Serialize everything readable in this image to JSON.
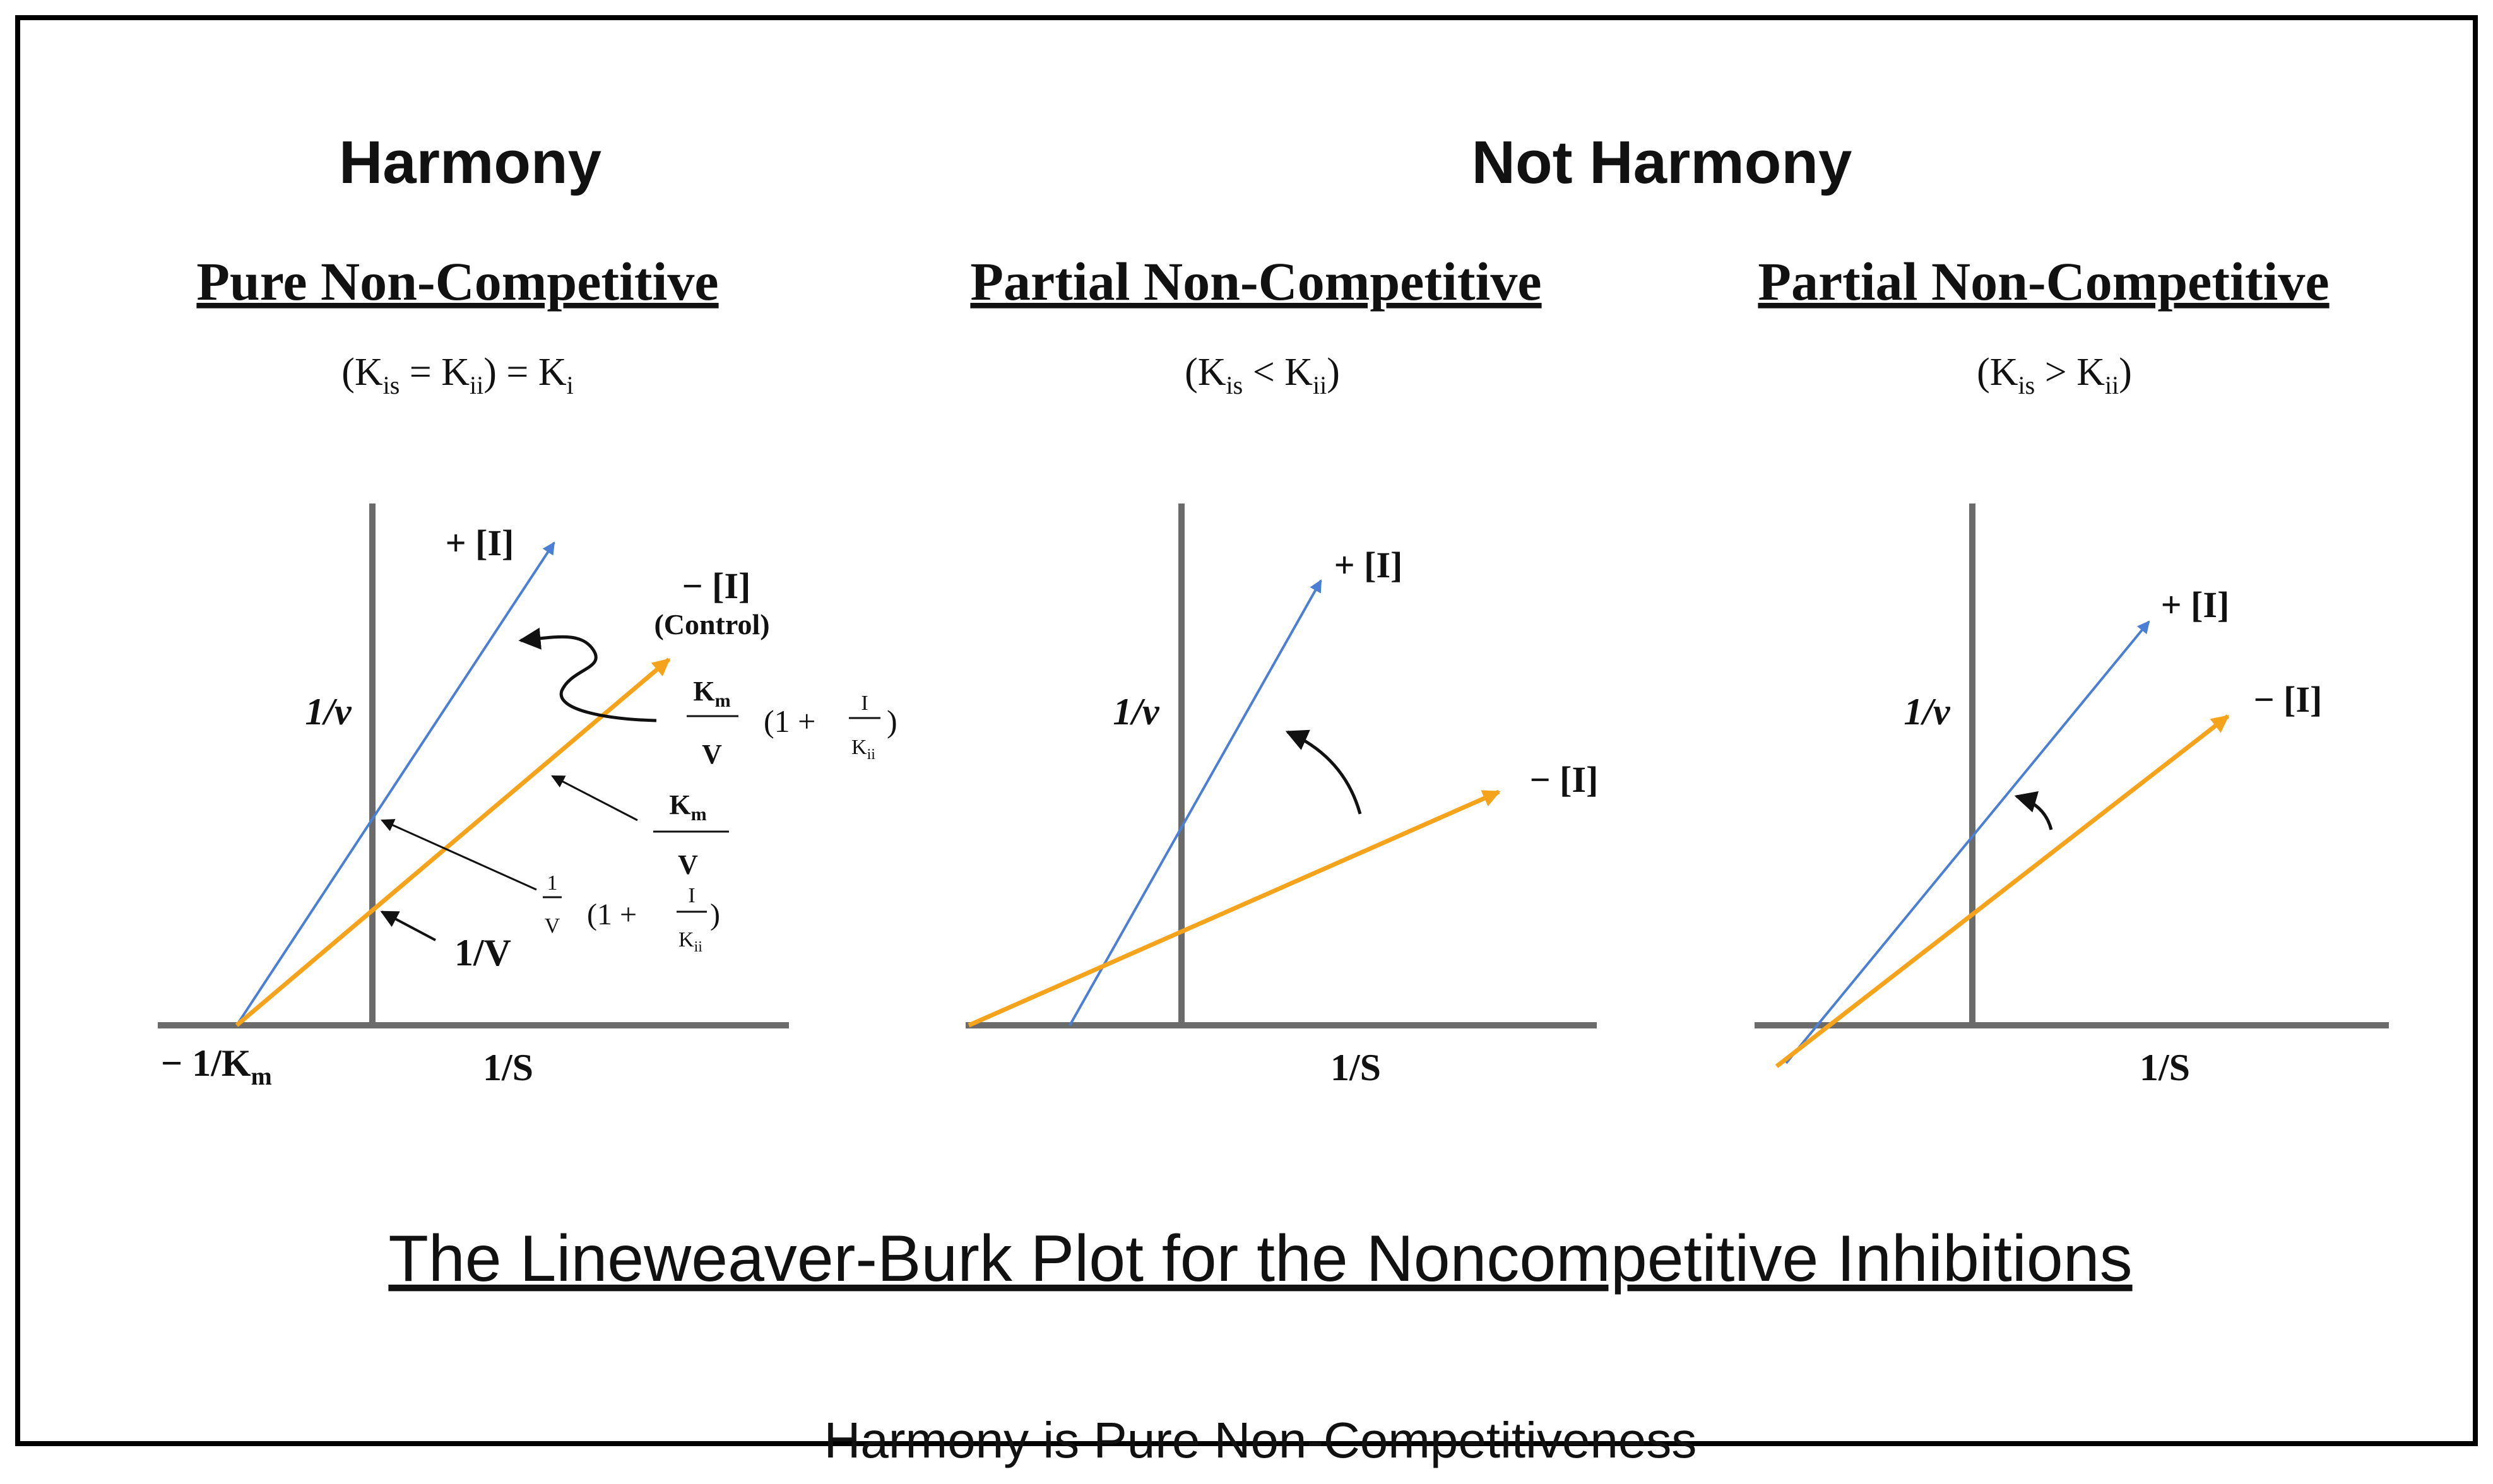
{
  "headings": {
    "harmony": "Harmony",
    "not_harmony": "Not Harmony"
  },
  "caption": "The Lineweaver-Burk Plot for the Noncompetitive Inhibitions",
  "footer": "Harmony is Pure Non-Competitiveness",
  "colors": {
    "inhibited_line": "#4a7fd4",
    "control_line": "#f5a31a",
    "axis": "#6b6b6b",
    "frame": "#000000"
  },
  "panels": [
    {
      "title": "Pure Non-Competitive",
      "condition": {
        "open": "(K",
        "a": "is",
        "eq1": " = K",
        "b": "ii",
        "close": ") = K",
        "c": "i"
      },
      "y_axis_label": "1/v",
      "x_axis_label": "1/S",
      "labels": {
        "plus_i": "+ [I]",
        "minus_i": "− [I]",
        "control": "(Control)",
        "neg_inv_km": "− 1/K",
        "neg_inv_km_sub": "m",
        "inv_vmax": "1/V",
        "km": "K",
        "km_sub": "m",
        "v": "V",
        "one": "1",
        "paren_open": "(1 +",
        "paren_close": ")",
        "i": "I",
        "kii": "K",
        "kii_sub": "ii"
      }
    },
    {
      "title": "Partial Non-Competitive",
      "condition": {
        "open": "(K",
        "a": "is",
        "eq1": " < K",
        "b": "ii",
        "close": ")"
      },
      "y_axis_label": "1/v",
      "x_axis_label": "1/S",
      "labels": {
        "plus_i": "+ [I]",
        "minus_i": "− [I]"
      }
    },
    {
      "title": "Partial Non-Competitive",
      "condition": {
        "open": "(K",
        "a": "is",
        "eq1": " > K",
        "b": "ii",
        "close": ")"
      },
      "y_axis_label": "1/v",
      "x_axis_label": "1/S",
      "labels": {
        "plus_i": "+ [I]",
        "minus_i": "− [I]"
      }
    }
  ]
}
